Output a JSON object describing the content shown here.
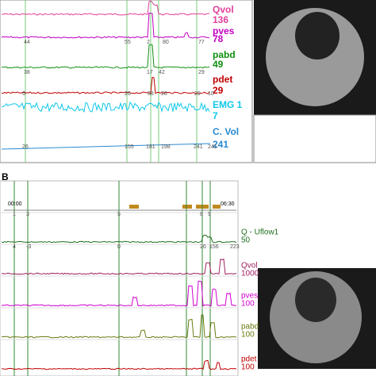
{
  "panel_a": {
    "channels": [
      {
        "label": "Qvol",
        "value": "136",
        "color": "#e0409a"
      },
      {
        "label": "pves",
        "value": "78",
        "color": "#c000c0"
      },
      {
        "label": "pabd",
        "value": "49",
        "color": "#109010"
      },
      {
        "label": "pdet",
        "value": "29",
        "color": "#c00000"
      },
      {
        "label": "EMG 1",
        "value": "7",
        "color": "#10c8e8"
      },
      {
        "label": "C. Vol",
        "value": "241",
        "color": "#2a8ad0"
      }
    ],
    "markers": {
      "pves": [
        "44",
        "55",
        "2",
        "80",
        "77"
      ],
      "pabd": [
        "38",
        "17",
        "42",
        "29"
      ],
      "pdet": [
        "6",
        "26",
        "58",
        "28",
        "29",
        "10"
      ],
      "cvol": [
        "26",
        "155",
        "181",
        "198",
        "241",
        "241"
      ]
    }
  },
  "panel_b": {
    "label": "B",
    "start_time": "00:00",
    "end_time": "06:30",
    "channels": [
      {
        "label": "Q - Uflow1",
        "value": "50",
        "color": "#207020"
      },
      {
        "label": "Qvol",
        "value": "1000",
        "color": "#a02060"
      },
      {
        "label": "pves",
        "value": "100",
        "color": "#d000d0"
      },
      {
        "label": "pabd",
        "value": "100",
        "color": "#6a7a10"
      },
      {
        "label": "pdet",
        "value": "100",
        "color": "#c00000"
      }
    ],
    "markers": [
      "1",
      "3",
      "5",
      "8",
      "9",
      "4",
      "-3",
      "0",
      "26",
      "156",
      "223"
    ]
  }
}
